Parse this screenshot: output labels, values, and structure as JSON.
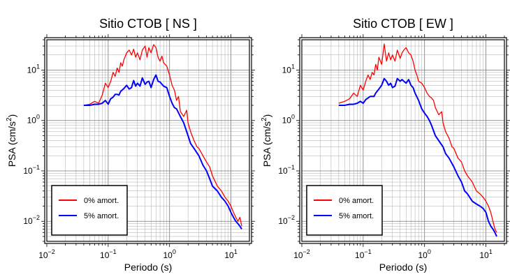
{
  "chart_data": [
    {
      "type": "line",
      "title": "Sitio CTOB [ NS ]",
      "xlabel": "Periodo (s)",
      "ylabel": "PSA (cm/s²)",
      "xscale": "log",
      "yscale": "log",
      "xlim": [
        0.01,
        20
      ],
      "ylim": [
        0.004,
        40
      ],
      "grid": true,
      "legend_position": "bottom-left",
      "x_ticks": [
        {
          "value": 0.01,
          "base": "10",
          "exp": "−2"
        },
        {
          "value": 0.1,
          "base": "10",
          "exp": "−1"
        },
        {
          "value": 1,
          "base": "10",
          "exp": "0"
        },
        {
          "value": 10,
          "base": "10",
          "exp": "1"
        }
      ],
      "y_ticks": [
        {
          "value": 0.01,
          "base": "10",
          "exp": "−2"
        },
        {
          "value": 0.1,
          "base": "10",
          "exp": "−1"
        },
        {
          "value": 1,
          "base": "10",
          "exp": "0"
        },
        {
          "value": 10,
          "base": "10",
          "exp": "1"
        }
      ],
      "series": [
        {
          "name": "0% amort.",
          "color": "#ff0000",
          "x": [
            0.04,
            0.05,
            0.06,
            0.07,
            0.08,
            0.09,
            0.1,
            0.11,
            0.12,
            0.13,
            0.14,
            0.15,
            0.16,
            0.17,
            0.18,
            0.2,
            0.22,
            0.24,
            0.26,
            0.28,
            0.3,
            0.33,
            0.36,
            0.4,
            0.43,
            0.46,
            0.5,
            0.55,
            0.6,
            0.65,
            0.7,
            0.75,
            0.8,
            0.9,
            1.0,
            1.1,
            1.2,
            1.3,
            1.4,
            1.5,
            1.7,
            1.9,
            2.0,
            2.2,
            2.5,
            2.8,
            3.0,
            3.5,
            4.0,
            4.5,
            5.0,
            6.0,
            7.0,
            8.0,
            9.0,
            10,
            11,
            12,
            13,
            14,
            15
          ],
          "values": [
            2.0,
            2.1,
            2.4,
            2.2,
            3.2,
            5.5,
            4.5,
            6.0,
            9.0,
            7.5,
            11,
            9.0,
            14,
            12,
            16,
            22,
            25,
            20,
            26,
            18,
            22,
            16,
            25,
            30,
            18,
            28,
            22,
            32,
            28,
            18,
            15,
            19,
            14,
            12,
            8.0,
            5.0,
            4.0,
            2.5,
            3.0,
            1.5,
            1.2,
            1.6,
            0.9,
            0.6,
            0.4,
            0.3,
            0.28,
            0.2,
            0.15,
            0.12,
            0.08,
            0.05,
            0.04,
            0.03,
            0.025,
            0.02,
            0.015,
            0.012,
            0.01,
            0.012,
            0.008
          ]
        },
        {
          "name": "5% amort.",
          "color": "#0000ff",
          "x": [
            0.04,
            0.05,
            0.06,
            0.07,
            0.08,
            0.09,
            0.1,
            0.11,
            0.12,
            0.13,
            0.14,
            0.15,
            0.16,
            0.18,
            0.2,
            0.22,
            0.24,
            0.26,
            0.28,
            0.3,
            0.33,
            0.36,
            0.4,
            0.43,
            0.46,
            0.5,
            0.55,
            0.6,
            0.65,
            0.7,
            0.8,
            0.9,
            1.0,
            1.1,
            1.2,
            1.3,
            1.5,
            1.7,
            2.0,
            2.2,
            2.5,
            3.0,
            3.5,
            4.0,
            4.5,
            5.0,
            6.0,
            7.0,
            8.0,
            9.0,
            10,
            11,
            12,
            13,
            14,
            15
          ],
          "values": [
            2.0,
            2.0,
            2.1,
            2.1,
            2.2,
            2.5,
            2.1,
            2.7,
            2.9,
            3.3,
            3.3,
            3.2,
            3.8,
            4.3,
            5.0,
            4.2,
            4.5,
            6.2,
            4.8,
            5.5,
            4.8,
            7.0,
            5.2,
            5.8,
            6.0,
            4.5,
            6.5,
            8.0,
            6.0,
            5.8,
            4.8,
            4.5,
            3.0,
            2.2,
            1.8,
            1.7,
            1.2,
            0.9,
            0.5,
            0.35,
            0.28,
            0.2,
            0.13,
            0.1,
            0.07,
            0.05,
            0.04,
            0.03,
            0.025,
            0.02,
            0.015,
            0.012,
            0.01,
            0.009,
            0.008,
            0.007
          ]
        }
      ]
    },
    {
      "type": "line",
      "title": "Sitio CTOB [ EW ]",
      "xlabel": "Periodo (s)",
      "ylabel": "PSA (cm/s²)",
      "xscale": "log",
      "yscale": "log",
      "xlim": [
        0.01,
        20
      ],
      "ylim": [
        0.004,
        40
      ],
      "grid": true,
      "legend_position": "bottom-left",
      "x_ticks": [
        {
          "value": 0.01,
          "base": "10",
          "exp": "−2"
        },
        {
          "value": 0.1,
          "base": "10",
          "exp": "−1"
        },
        {
          "value": 1,
          "base": "10",
          "exp": "0"
        },
        {
          "value": 10,
          "base": "10",
          "exp": "1"
        }
      ],
      "y_ticks": [
        {
          "value": 0.01,
          "base": "10",
          "exp": "−2"
        },
        {
          "value": 0.1,
          "base": "10",
          "exp": "−1"
        },
        {
          "value": 1,
          "base": "10",
          "exp": "0"
        },
        {
          "value": 10,
          "base": "10",
          "exp": "1"
        }
      ],
      "series": [
        {
          "name": "0% amort.",
          "color": "#ff0000",
          "x": [
            0.04,
            0.05,
            0.06,
            0.07,
            0.08,
            0.09,
            0.1,
            0.11,
            0.12,
            0.13,
            0.14,
            0.15,
            0.16,
            0.17,
            0.18,
            0.2,
            0.22,
            0.24,
            0.26,
            0.28,
            0.3,
            0.33,
            0.36,
            0.4,
            0.43,
            0.46,
            0.5,
            0.55,
            0.6,
            0.65,
            0.7,
            0.75,
            0.8,
            0.9,
            1.0,
            1.1,
            1.2,
            1.3,
            1.4,
            1.5,
            1.7,
            1.9,
            2.0,
            2.2,
            2.5,
            2.8,
            3.0,
            3.5,
            4.0,
            4.5,
            5.0,
            6.0,
            7.0,
            8.0,
            9.0,
            10,
            11,
            12,
            13,
            14,
            15
          ],
          "values": [
            2.2,
            2.4,
            2.7,
            3.5,
            3.0,
            5.0,
            4.0,
            6.0,
            8.0,
            6.5,
            9.0,
            8.0,
            13,
            10,
            18,
            13,
            33,
            15,
            22,
            16,
            20,
            15,
            25,
            17,
            22,
            25,
            28,
            22,
            20,
            15,
            10,
            8.0,
            6.0,
            5.5,
            4.5,
            3.5,
            3.0,
            2.8,
            2.5,
            1.8,
            1.3,
            1.5,
            0.9,
            0.6,
            0.45,
            0.3,
            0.28,
            0.18,
            0.15,
            0.1,
            0.08,
            0.06,
            0.04,
            0.035,
            0.03,
            0.025,
            0.02,
            0.015,
            0.01,
            0.007,
            0.006
          ]
        },
        {
          "name": "5% amort.",
          "color": "#0000ff",
          "x": [
            0.04,
            0.05,
            0.06,
            0.07,
            0.08,
            0.09,
            0.1,
            0.11,
            0.12,
            0.13,
            0.14,
            0.15,
            0.16,
            0.18,
            0.2,
            0.22,
            0.24,
            0.26,
            0.28,
            0.3,
            0.33,
            0.36,
            0.4,
            0.43,
            0.46,
            0.5,
            0.55,
            0.6,
            0.65,
            0.7,
            0.8,
            0.9,
            1.0,
            1.1,
            1.2,
            1.3,
            1.5,
            1.7,
            2.0,
            2.2,
            2.5,
            3.0,
            3.5,
            4.0,
            4.5,
            5.0,
            6.0,
            7.0,
            8.0,
            9.0,
            10,
            11,
            12,
            13,
            14,
            15
          ],
          "values": [
            2.0,
            2.0,
            2.1,
            2.1,
            2.2,
            2.4,
            2.2,
            2.6,
            2.8,
            3.0,
            3.0,
            3.0,
            3.5,
            4.2,
            5.0,
            6.8,
            6.0,
            5.0,
            5.5,
            4.5,
            4.8,
            6.8,
            6.0,
            6.5,
            6.0,
            5.5,
            6.5,
            5.0,
            4.5,
            3.5,
            2.5,
            1.7,
            1.4,
            1.2,
            1.0,
            0.8,
            0.5,
            0.4,
            0.3,
            0.22,
            0.18,
            0.12,
            0.08,
            0.06,
            0.04,
            0.035,
            0.025,
            0.022,
            0.02,
            0.018,
            0.015,
            0.01,
            0.008,
            0.007,
            0.006,
            0.005
          ]
        }
      ]
    }
  ]
}
